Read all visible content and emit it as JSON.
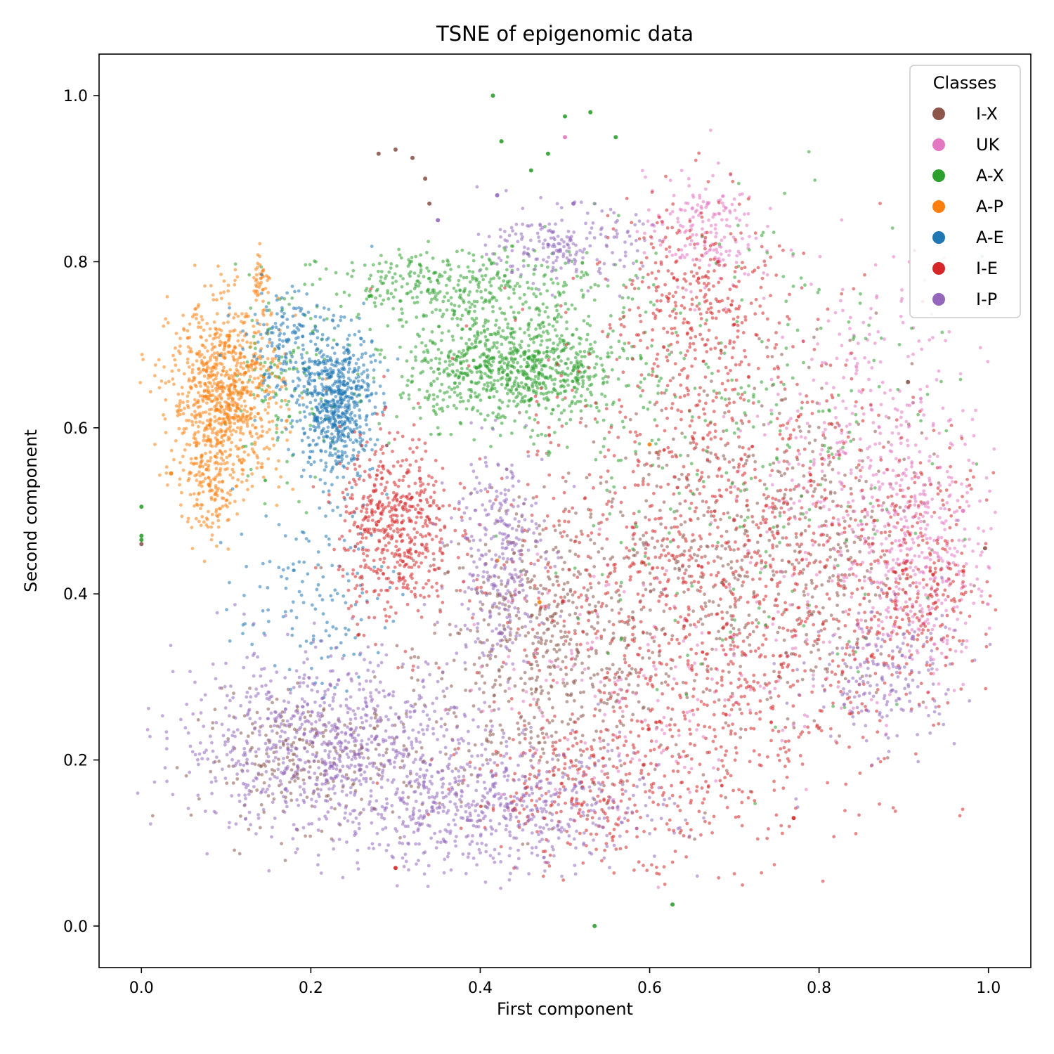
{
  "chart_data": {
    "type": "scatter",
    "title": "TSNE of epigenomic data",
    "xlabel": "First component",
    "ylabel": "Second component",
    "xlim": [
      -0.05,
      1.05
    ],
    "ylim": [
      -0.05,
      1.05
    ],
    "xticks": [
      0.0,
      0.2,
      0.4,
      0.6,
      0.8,
      1.0
    ],
    "yticks": [
      0.0,
      0.2,
      0.4,
      0.6,
      0.8,
      1.0
    ],
    "xtick_labels": [
      "0.0",
      "0.2",
      "0.4",
      "0.6",
      "0.8",
      "1.0"
    ],
    "ytick_labels": [
      "0.0",
      "0.2",
      "0.4",
      "0.6",
      "0.8",
      "1.0"
    ],
    "grid": false,
    "legend": {
      "title": "Classes",
      "placement": "top-right",
      "entries": [
        {
          "name": "I-X",
          "color": "#8c564b"
        },
        {
          "name": "UK",
          "color": "#e377c2"
        },
        {
          "name": "A-X",
          "color": "#2ca02c"
        },
        {
          "name": "A-P",
          "color": "#ff7f0e"
        },
        {
          "name": "A-E",
          "color": "#1f77b4"
        },
        {
          "name": "I-E",
          "color": "#d62728"
        },
        {
          "name": "I-P",
          "color": "#9467bd"
        }
      ]
    },
    "series": [
      {
        "name": "I-X",
        "color": "#8c564b",
        "clusters": [
          {
            "cx": 0.48,
            "cy": 0.33,
            "rx": 0.14,
            "ry": 0.16,
            "n": 650
          },
          {
            "cx": 0.68,
            "cy": 0.45,
            "rx": 0.14,
            "ry": 0.2,
            "n": 350
          },
          {
            "cx": 0.2,
            "cy": 0.2,
            "rx": 0.12,
            "ry": 0.07,
            "n": 250
          },
          {
            "cx": 0.82,
            "cy": 0.45,
            "rx": 0.1,
            "ry": 0.18,
            "n": 220
          }
        ],
        "points": [
          [
            0.0,
            0.46
          ],
          [
            0.28,
            0.93
          ],
          [
            0.3,
            0.935
          ],
          [
            0.32,
            0.925
          ],
          [
            0.335,
            0.9
          ],
          [
            0.34,
            0.87
          ],
          [
            0.996,
            0.455
          ],
          [
            0.905,
            0.655
          ]
        ]
      },
      {
        "name": "UK",
        "color": "#e377c2",
        "clusters": [
          {
            "cx": 0.86,
            "cy": 0.55,
            "rx": 0.12,
            "ry": 0.22,
            "n": 450
          },
          {
            "cx": 0.92,
            "cy": 0.43,
            "rx": 0.07,
            "ry": 0.12,
            "n": 260
          },
          {
            "cx": 0.66,
            "cy": 0.84,
            "rx": 0.06,
            "ry": 0.06,
            "n": 180
          },
          {
            "cx": 0.6,
            "cy": 0.3,
            "rx": 0.2,
            "ry": 0.15,
            "n": 180
          }
        ],
        "points": [
          [
            0.5,
            0.95
          ],
          [
            0.97,
            0.5
          ]
        ]
      },
      {
        "name": "A-X",
        "color": "#2ca02c",
        "clusters": [
          {
            "cx": 0.44,
            "cy": 0.67,
            "rx": 0.12,
            "ry": 0.06,
            "n": 900
          },
          {
            "cx": 0.38,
            "cy": 0.77,
            "rx": 0.15,
            "ry": 0.04,
            "n": 380
          },
          {
            "cx": 0.7,
            "cy": 0.6,
            "rx": 0.22,
            "ry": 0.28,
            "n": 280
          },
          {
            "cx": 0.16,
            "cy": 0.64,
            "rx": 0.06,
            "ry": 0.1,
            "n": 120
          }
        ],
        "points": [
          [
            0.0,
            0.505
          ],
          [
            0.0,
            0.47
          ],
          [
            0.0,
            0.465
          ],
          [
            0.415,
            1.0
          ],
          [
            0.425,
            0.945
          ],
          [
            0.5,
            0.975
          ],
          [
            0.53,
            0.98
          ],
          [
            0.56,
            0.95
          ],
          [
            0.48,
            0.93
          ],
          [
            0.46,
            0.91
          ],
          [
            0.627,
            0.026
          ],
          [
            0.535,
            0.0
          ]
        ]
      },
      {
        "name": "A-P",
        "color": "#ff7f0e",
        "clusters": [
          {
            "cx": 0.1,
            "cy": 0.64,
            "rx": 0.06,
            "ry": 0.1,
            "n": 900
          },
          {
            "cx": 0.08,
            "cy": 0.52,
            "rx": 0.03,
            "ry": 0.05,
            "n": 120
          },
          {
            "cx": 0.14,
            "cy": 0.78,
            "rx": 0.01,
            "ry": 0.02,
            "n": 40
          }
        ],
        "points": [
          [
            0.035,
            0.545
          ],
          [
            0.42,
            0.44
          ],
          [
            0.47,
            0.39
          ],
          [
            0.6,
            0.58
          ]
        ]
      },
      {
        "name": "A-E",
        "color": "#1f77b4",
        "clusters": [
          {
            "cx": 0.23,
            "cy": 0.63,
            "rx": 0.04,
            "ry": 0.08,
            "n": 650
          },
          {
            "cx": 0.17,
            "cy": 0.7,
            "rx": 0.05,
            "ry": 0.06,
            "n": 160
          },
          {
            "cx": 0.2,
            "cy": 0.4,
            "rx": 0.08,
            "ry": 0.1,
            "n": 140
          }
        ],
        "points": []
      },
      {
        "name": "I-E",
        "color": "#d62728",
        "clusters": [
          {
            "cx": 0.68,
            "cy": 0.42,
            "rx": 0.22,
            "ry": 0.3,
            "n": 1400
          },
          {
            "cx": 0.3,
            "cy": 0.48,
            "rx": 0.06,
            "ry": 0.1,
            "n": 550
          },
          {
            "cx": 0.92,
            "cy": 0.42,
            "rx": 0.08,
            "ry": 0.12,
            "n": 260
          },
          {
            "cx": 0.65,
            "cy": 0.75,
            "rx": 0.08,
            "ry": 0.12,
            "n": 300
          },
          {
            "cx": 0.55,
            "cy": 0.16,
            "rx": 0.15,
            "ry": 0.07,
            "n": 300
          }
        ],
        "points": [
          [
            0.3,
            0.07
          ],
          [
            0.77,
            0.13
          ]
        ]
      },
      {
        "name": "I-P",
        "color": "#9467bd",
        "clusters": [
          {
            "cx": 0.22,
            "cy": 0.22,
            "rx": 0.16,
            "ry": 0.1,
            "n": 850
          },
          {
            "cx": 0.42,
            "cy": 0.14,
            "rx": 0.18,
            "ry": 0.07,
            "n": 600
          },
          {
            "cx": 0.42,
            "cy": 0.45,
            "rx": 0.05,
            "ry": 0.12,
            "n": 300
          },
          {
            "cx": 0.5,
            "cy": 0.82,
            "rx": 0.08,
            "ry": 0.04,
            "n": 200
          },
          {
            "cx": 0.88,
            "cy": 0.3,
            "rx": 0.08,
            "ry": 0.08,
            "n": 180
          }
        ],
        "points": [
          [
            0.42,
            0.88
          ],
          [
            0.51,
            0.87
          ],
          [
            0.35,
            0.85
          ]
        ]
      }
    ]
  }
}
